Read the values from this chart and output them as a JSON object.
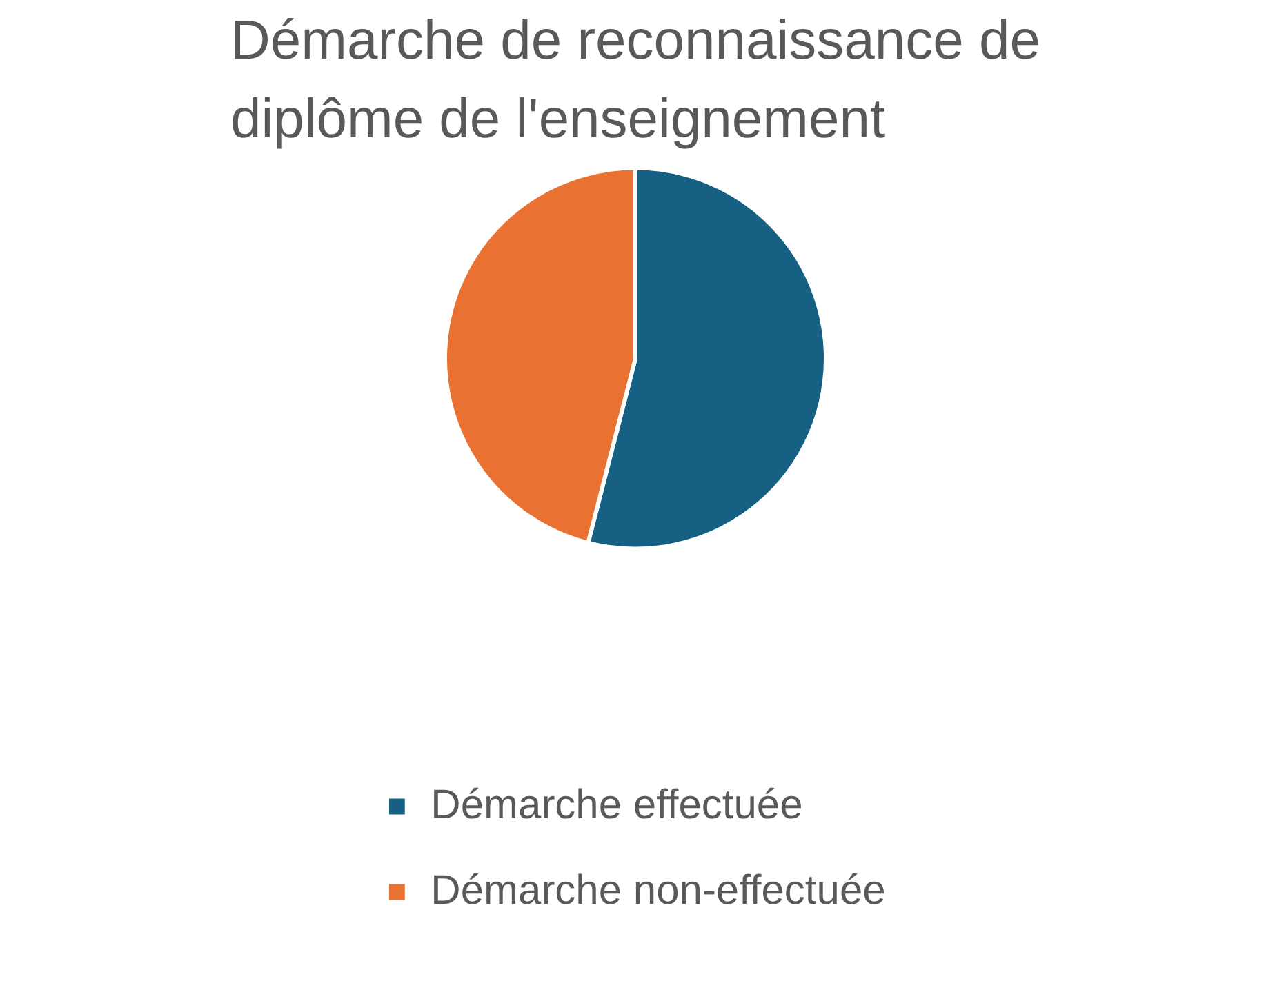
{
  "chart_data": {
    "type": "pie",
    "title": "Démarche de reconnaissance de diplôme de l'enseignement",
    "categories": [
      "Démarche effectuée",
      "Démarche non-effectuée"
    ],
    "values": [
      54,
      46
    ],
    "colors": [
      "#166083",
      "#e97132"
    ],
    "legend": "bottom"
  }
}
